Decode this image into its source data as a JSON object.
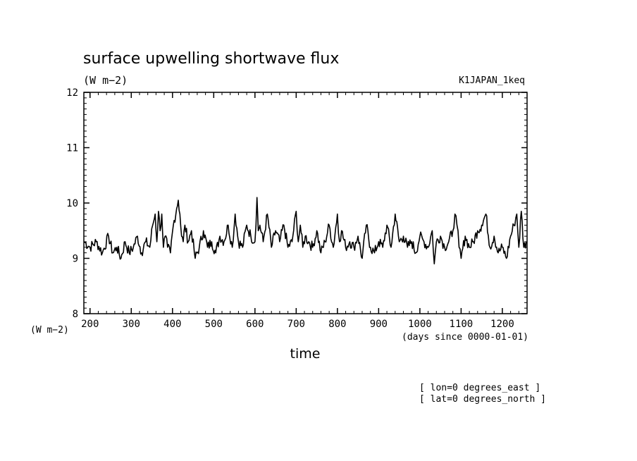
{
  "chart_data": {
    "type": "line",
    "title": "surface upwelling shortwave flux",
    "units": "(W m−2)",
    "experiment": "K1JAPAN_1keq",
    "xlabel": "time",
    "xunits": "(days since 0000-01-01)",
    "ylabel_units": "(W m−2)",
    "xlim": [
      185,
      1260
    ],
    "ylim": [
      8,
      12
    ],
    "xticks": [
      200,
      300,
      400,
      500,
      600,
      700,
      800,
      900,
      1000,
      1100,
      1200
    ],
    "yticks": [
      8,
      9,
      10,
      11,
      12
    ],
    "grid": false,
    "annotations": [
      "[ lon=0 degrees_east ]",
      "[ lat=0 degrees_north ]"
    ],
    "series": [
      {
        "x": [
          186,
          200,
          215,
          230,
          245,
          255,
          265,
          275,
          285,
          295,
          305,
          315,
          325,
          335,
          345,
          352,
          358,
          362,
          366,
          370,
          374,
          378,
          382,
          388,
          395,
          402,
          410,
          414,
          418,
          422,
          426,
          430,
          438,
          446,
          455,
          465,
          475,
          485,
          495,
          505,
          515,
          525,
          535,
          545,
          552,
          560,
          570,
          580,
          590,
          600,
          605,
          608,
          612,
          620,
          630,
          640,
          650,
          660,
          670,
          680,
          690,
          700,
          705,
          710,
          716,
          722,
          730,
          740,
          750,
          760,
          770,
          780,
          790,
          800,
          805,
          810,
          820,
          830,
          840,
          850,
          860,
          870,
          880,
          890,
          900,
          910,
          920,
          930,
          940,
          950,
          960,
          970,
          980,
          990,
          1000,
          1010,
          1020,
          1030,
          1035,
          1040,
          1050,
          1060,
          1070,
          1080,
          1085,
          1090,
          1095,
          1100,
          1110,
          1120,
          1130,
          1140,
          1150,
          1160,
          1170,
          1180,
          1190,
          1200,
          1210,
          1220,
          1228,
          1235,
          1240,
          1246,
          1252,
          1258
        ],
        "y": [
          9.3,
          9.2,
          9.3,
          9.1,
          9.4,
          9.1,
          9.2,
          9.0,
          9.3,
          9.1,
          9.2,
          9.4,
          9.1,
          9.3,
          9.2,
          9.6,
          9.8,
          9.3,
          9.85,
          9.5,
          9.8,
          9.2,
          9.4,
          9.2,
          9.1,
          9.6,
          9.9,
          10.05,
          9.8,
          9.4,
          9.3,
          9.6,
          9.3,
          9.5,
          9.0,
          9.2,
          9.5,
          9.2,
          9.3,
          9.1,
          9.4,
          9.3,
          9.6,
          9.2,
          9.8,
          9.3,
          9.2,
          9.6,
          9.4,
          9.3,
          10.1,
          9.5,
          9.6,
          9.3,
          9.8,
          9.2,
          9.5,
          9.3,
          9.6,
          9.2,
          9.3,
          9.85,
          9.3,
          9.6,
          9.2,
          9.4,
          9.3,
          9.2,
          9.5,
          9.1,
          9.3,
          9.6,
          9.2,
          9.8,
          9.3,
          9.5,
          9.2,
          9.3,
          9.2,
          9.4,
          9.0,
          9.6,
          9.2,
          9.1,
          9.3,
          9.2,
          9.6,
          9.2,
          9.8,
          9.3,
          9.4,
          9.2,
          9.3,
          9.1,
          9.4,
          9.3,
          9.2,
          9.5,
          8.9,
          9.3,
          9.4,
          9.2,
          9.3,
          9.5,
          9.8,
          9.6,
          9.2,
          9.0,
          9.4,
          9.2,
          9.3,
          9.5,
          9.6,
          9.8,
          9.2,
          9.4,
          9.1,
          9.2,
          9.0,
          9.4,
          9.6,
          9.8,
          9.2,
          9.85,
          9.2,
          9.3
        ]
      }
    ]
  }
}
